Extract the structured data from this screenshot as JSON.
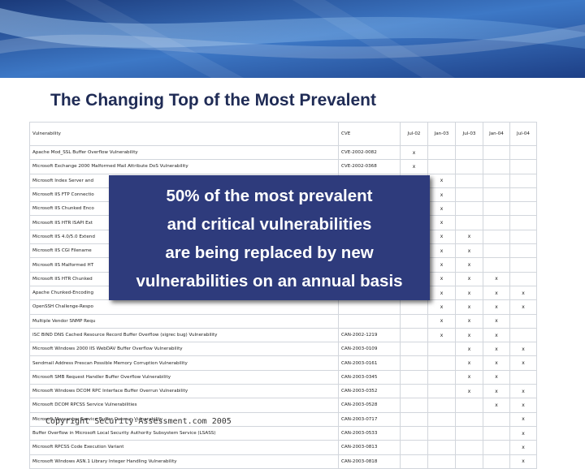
{
  "slide": {
    "title": "The Changing Top of the Most Prevalent",
    "overlay_lines": [
      "50% of the most prevalent",
      "and critical vulnerabilities",
      "are being replaced by new",
      "vulnerabilities on an annual basis"
    ],
    "copyright": "Copyright Security-Assessment.com 2005",
    "colors": {
      "banner_dark": "#1b3a7a",
      "banner_mid": "#3d78c6",
      "banner_light": "#a9cdf0",
      "title": "#1f2b55",
      "overlay_bg": "#2e3b7c",
      "overlay_text": "#ffffff"
    }
  },
  "table": {
    "headers": [
      "Vulnerability",
      "CVE",
      "Jul-02",
      "Jan-03",
      "Jul-03",
      "Jan-04",
      "Jul-04"
    ],
    "mark": "x",
    "rows": [
      {
        "name": "Apache Mod_SSL Buffer Overflow Vulnerability",
        "cve": "CVE-2002-0082",
        "marks": [
          1,
          0,
          0,
          0,
          0
        ]
      },
      {
        "name": "Microsoft Exchange 2000 Malformed Mail Attribute DoS Vulnerability",
        "cve": "CVE-2002-0368",
        "marks": [
          1,
          0,
          0,
          0,
          0
        ]
      },
      {
        "name": "Microsoft Index Server and",
        "cve": "",
        "marks": [
          0,
          1,
          0,
          0,
          0
        ]
      },
      {
        "name": "Microsoft IIS FTP Connectio",
        "cve": "",
        "marks": [
          0,
          1,
          0,
          0,
          0
        ]
      },
      {
        "name": "Microsoft IIS Chunked Enco",
        "cve": "",
        "marks": [
          0,
          1,
          0,
          0,
          0
        ]
      },
      {
        "name": "Microsoft IIS HTR ISAPI Ext",
        "cve": "",
        "marks": [
          0,
          1,
          0,
          0,
          0
        ]
      },
      {
        "name": "Microsoft IIS 4.0/5.0 Extend",
        "cve": "",
        "marks": [
          0,
          1,
          1,
          0,
          0
        ]
      },
      {
        "name": "Microsoft IIS CGI Filename",
        "cve": "",
        "marks": [
          0,
          1,
          1,
          0,
          0
        ]
      },
      {
        "name": "Microsoft IIS Malformed HT",
        "cve": "",
        "marks": [
          0,
          1,
          1,
          0,
          0
        ]
      },
      {
        "name": "Microsoft IIS HTR Chunked",
        "cve": "",
        "marks": [
          0,
          1,
          1,
          1,
          0
        ]
      },
      {
        "name": "Apache Chunked-Encoding",
        "cve": "",
        "marks": [
          0,
          1,
          1,
          1,
          1
        ]
      },
      {
        "name": "OpenSSH Challenge-Respo",
        "cve": "",
        "marks": [
          0,
          1,
          1,
          1,
          1
        ]
      },
      {
        "name": "Multiple Vendor SNMP Requ",
        "cve": "",
        "marks": [
          0,
          1,
          1,
          1,
          0
        ]
      },
      {
        "name": "ISC BIND DNS Cached Resource Record Buffer Overflow (sigrec bug) Vulnerability",
        "cve": "CAN-2002-1219",
        "marks": [
          0,
          1,
          1,
          1,
          0
        ]
      },
      {
        "name": "Microsoft Windows 2000 IIS WebDAV Buffer Overflow Vulnerability",
        "cve": "CAN-2003-0109",
        "marks": [
          0,
          0,
          1,
          1,
          1
        ]
      },
      {
        "name": "Sendmail Address Prescan Possible Memory Corruption Vulnerability",
        "cve": "CAN-2003-0161",
        "marks": [
          0,
          0,
          1,
          1,
          1
        ]
      },
      {
        "name": "Microsoft SMB Request Handler Buffer Overflow Vulnerability",
        "cve": "CAN-2003-0345",
        "marks": [
          0,
          0,
          1,
          1,
          0
        ]
      },
      {
        "name": "Microsoft Windows DCOM RPC Interface Buffer Overrun Vulnerability",
        "cve": "CAN-2003-0352",
        "marks": [
          0,
          0,
          1,
          1,
          1
        ]
      },
      {
        "name": "Microsoft DCOM RPCSS Service Vulnerabilities",
        "cve": "CAN-2003-0528",
        "marks": [
          0,
          0,
          0,
          1,
          1
        ]
      },
      {
        "name": "Microsoft Messenger Service Buffer Overrun Vulnerability",
        "cve": "CAN-2003-0717",
        "marks": [
          0,
          0,
          0,
          0,
          1
        ]
      },
      {
        "name": "Buffer Overflow in Microsoft Local Security Authority Subsystem Service (LSASS)",
        "cve": "CAN-2003-0533",
        "marks": [
          0,
          0,
          0,
          0,
          1
        ]
      },
      {
        "name": "Microsoft RPCSS Code Execution Variant",
        "cve": "CAN-2003-0813",
        "marks": [
          0,
          0,
          0,
          0,
          1
        ]
      },
      {
        "name": "Microsoft Windows ASN.1 Library Integer Handling Vulnerability",
        "cve": "CAN-2003-0818",
        "marks": [
          0,
          0,
          0,
          0,
          1
        ]
      }
    ]
  }
}
